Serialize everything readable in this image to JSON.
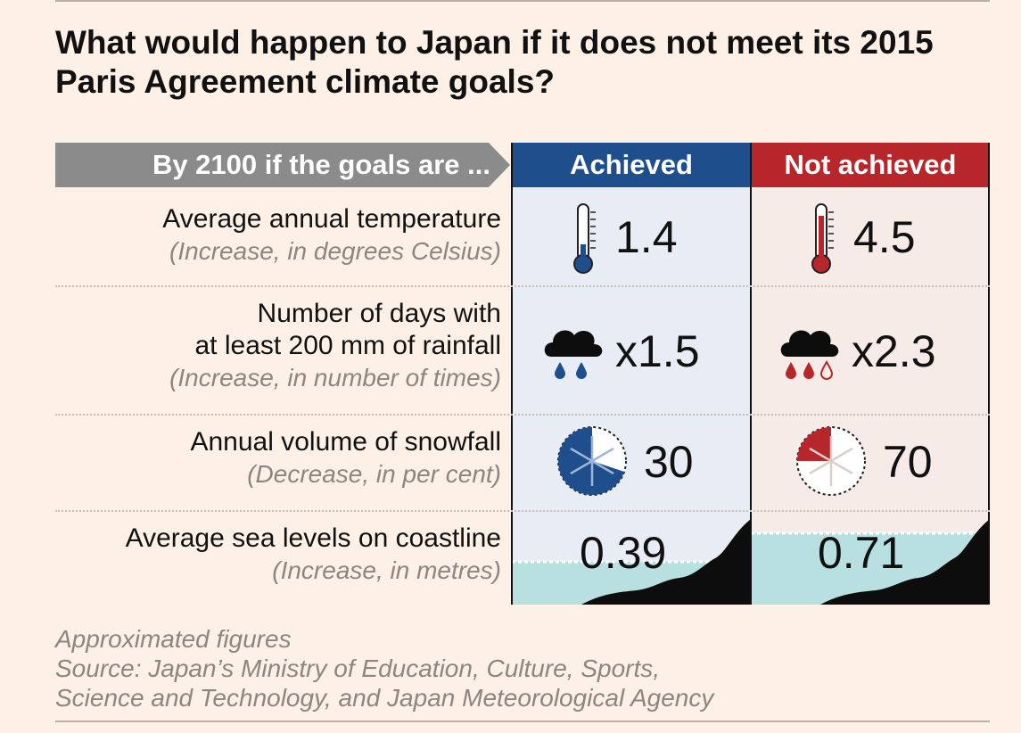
{
  "title": "What would happen to Japan if it does not meet its 2015 Paris Agreement climate goals?",
  "header": {
    "row_header": "By 2100 if the goals are ...",
    "achieved": "Achieved",
    "not_achieved": "Not achieved"
  },
  "rows": [
    {
      "label": "Average annual temperature",
      "sublabel": "(Increase, in degrees Celsius)",
      "achieved": "1.4",
      "not_achieved": "4.5",
      "icon": "thermometer-icon"
    },
    {
      "label_line1": "Number of days with",
      "label_line2": "at least 200 mm of rainfall",
      "sublabel": "(Increase, in number of times)",
      "achieved": "x1.5",
      "not_achieved": "x2.3",
      "icon": "rain-cloud-icon"
    },
    {
      "label": "Annual volume of snowfall",
      "sublabel": "(Decrease, in per cent)",
      "achieved": "30",
      "not_achieved": "70",
      "icon": "snowflake-pie-icon"
    },
    {
      "label": "Average sea levels on coastline",
      "sublabel": "(Increase, in metres)",
      "achieved": "0.39",
      "not_achieved": "0.71",
      "icon": "coastline-icon"
    }
  ],
  "footer": {
    "note": "Approximated figures",
    "source_line1": "Source: Japan’s Ministry of Education, Culture, Sports,",
    "source_line2": "Science and Technology, and Japan Meteorological Agency"
  },
  "colors": {
    "achieved": "#1f4e8c",
    "not_achieved": "#b6262a",
    "background": "#fdf1e7",
    "water": "#b9e0e0"
  }
}
